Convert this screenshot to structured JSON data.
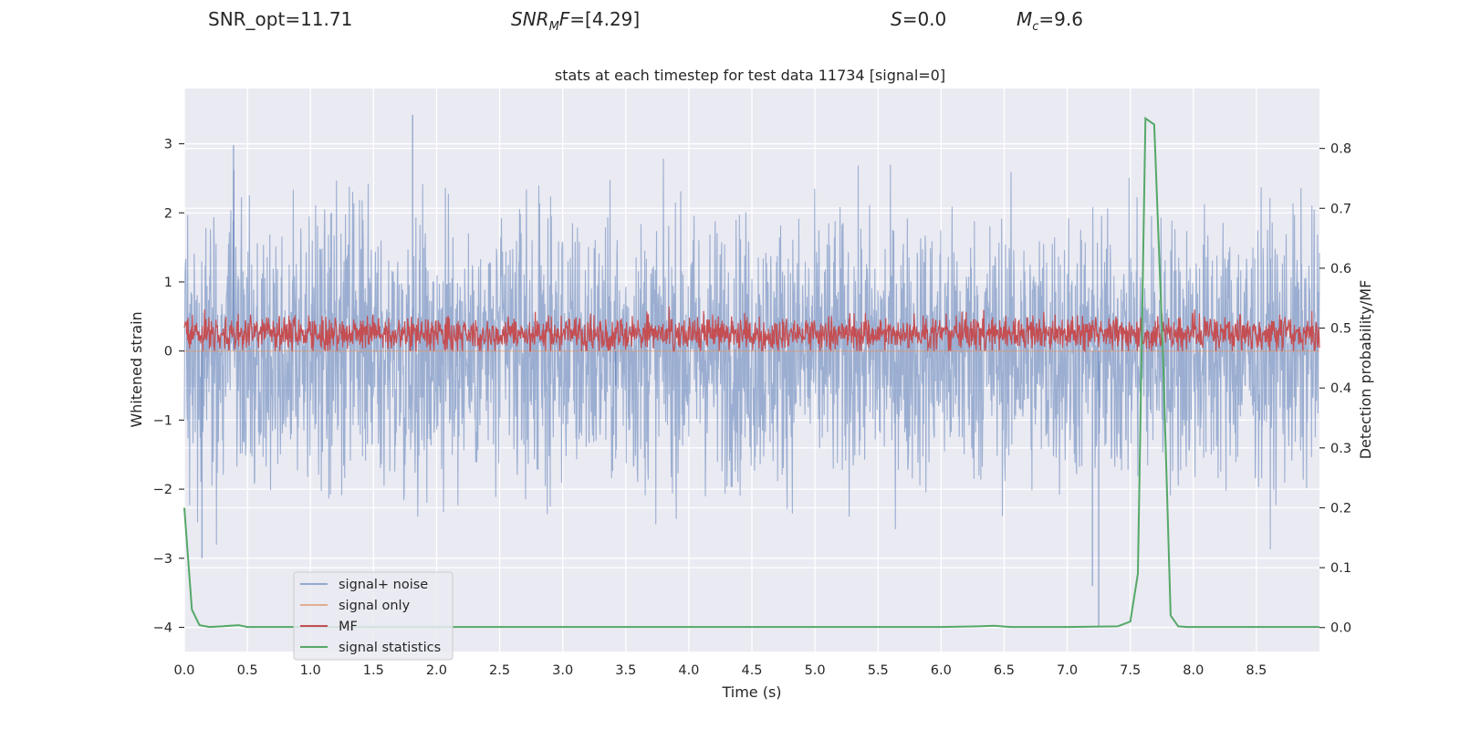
{
  "header": {
    "snr_opt": "SNR_opt=11.71",
    "snr_mf_base": "SNR",
    "snr_mf_sub": "M",
    "snr_mf_tail": "F",
    "snr_mf_value": "=[4.29]",
    "s_symbol": "S",
    "s_value": "=0.0",
    "mc_symbol": "M",
    "mc_sub": "c",
    "mc_value": "=9.6"
  },
  "chart_data": {
    "type": "line",
    "title": "stats at each timestep for test data 11734 [signal=0]",
    "xlabel": "Time (s)",
    "ylabel": "Whitened strain",
    "y2label": "Detection probability/MF",
    "xlim": [
      0.0,
      9.0
    ],
    "ylim": [
      -4.35,
      3.8
    ],
    "y2lim": [
      -0.04,
      0.9
    ],
    "xticks": [
      "0.0",
      "0.5",
      "1.0",
      "1.5",
      "2.0",
      "2.5",
      "3.0",
      "3.5",
      "4.0",
      "4.5",
      "5.0",
      "5.5",
      "6.0",
      "6.5",
      "7.0",
      "7.5",
      "8.0",
      "8.5"
    ],
    "yticks": [
      "3",
      "2",
      "1",
      "0",
      "−1",
      "−2",
      "−3",
      "−4"
    ],
    "y2ticks": [
      "0.8",
      "0.7",
      "0.6",
      "0.5",
      "0.4",
      "0.3",
      "0.2",
      "0.1",
      "0.0"
    ],
    "grid": true,
    "legend_position": "lower-left",
    "colors": {
      "plot_bg": "#eaeaf2",
      "grid": "#ffffff",
      "signal_noise": "#4c72b0",
      "signal_only": "#dd8452",
      "mf": "#c44e52",
      "signal_statistics": "#55a868"
    },
    "series": [
      {
        "name": "signal+ noise",
        "axis": "left",
        "description": "whitened strain noise, roughly between -3 and 3.4",
        "range": [
          -4.0,
          3.42
        ],
        "peaks": [
          [
            1.81,
            3.42
          ],
          [
            0.39,
            2.98
          ],
          [
            3.42,
            -0.5
          ],
          [
            7.25,
            -4.0
          ],
          [
            7.2,
            -3.4
          ],
          [
            0.14,
            -3.0
          ]
        ]
      },
      {
        "name": "signal only",
        "axis": "left",
        "description": "flat, no signal",
        "values": [
          0
        ]
      },
      {
        "name": "MF",
        "axis": "left",
        "description": "matched filter output, roughly between 0 and 0.9",
        "range": [
          0.0,
          0.95
        ]
      },
      {
        "name": "signal statistics",
        "axis": "right",
        "x": [
          0.0,
          0.06,
          0.12,
          0.2,
          0.3,
          0.43,
          0.5,
          1.0,
          2.0,
          3.0,
          4.0,
          5.0,
          6.0,
          6.3,
          6.42,
          6.55,
          7.0,
          7.4,
          7.5,
          7.56,
          7.62,
          7.69,
          7.76,
          7.82,
          7.88,
          7.95,
          8.5,
          9.0
        ],
        "values": [
          0.2,
          0.03,
          0.004,
          0.001,
          0.002,
          0.004,
          0.001,
          0.001,
          0.001,
          0.001,
          0.001,
          0.001,
          0.001,
          0.002,
          0.003,
          0.001,
          0.001,
          0.002,
          0.01,
          0.09,
          0.85,
          0.84,
          0.45,
          0.02,
          0.002,
          0.001,
          0.001,
          0.001
        ]
      }
    ]
  }
}
